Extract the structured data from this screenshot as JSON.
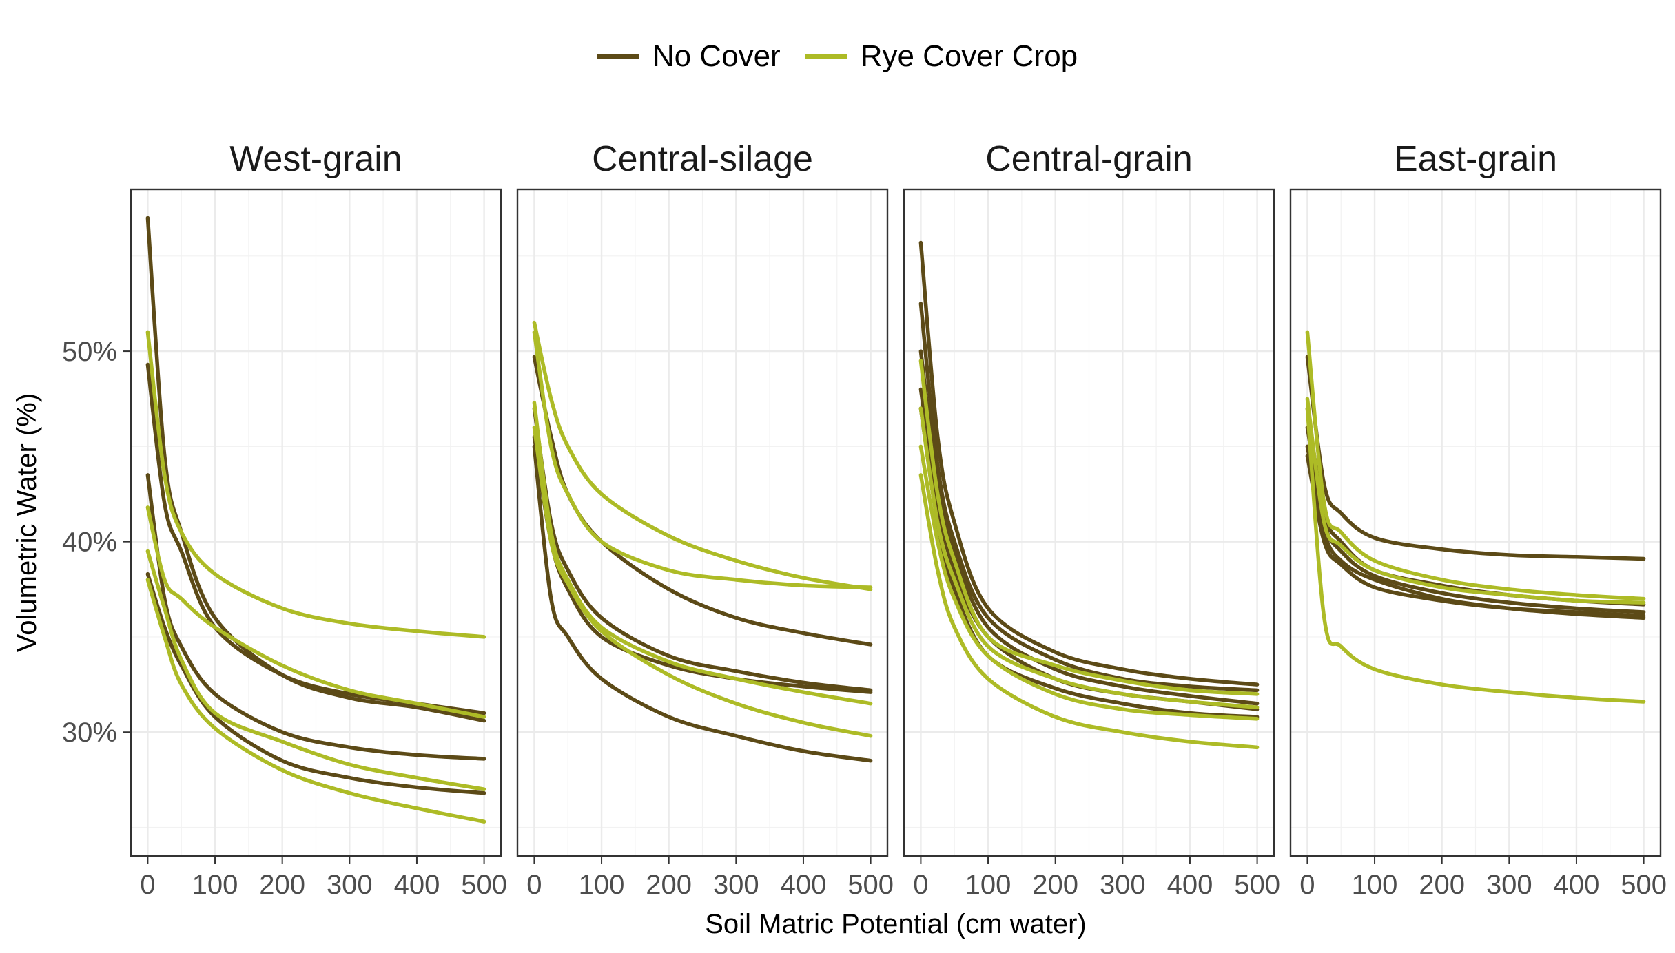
{
  "chart_data": {
    "type": "line",
    "xlabel": "Soil Matric Potential (cm water)",
    "ylabel": "Volumetric Water (%)",
    "xlim": [
      -25,
      525
    ],
    "ylim": [
      23.5,
      58.5
    ],
    "x_ticks": [
      0,
      100,
      200,
      300,
      400,
      500
    ],
    "y_ticks": [
      30,
      40,
      50
    ],
    "y_tick_labels": [
      "30%",
      "40%",
      "50%"
    ],
    "grid": true,
    "legend_position": "top",
    "colors": {
      "No Cover": "#5c4a17",
      "Rye Cover Crop": "#adbb26"
    },
    "legend": [
      {
        "name": "No Cover",
        "color": "#5c4a17"
      },
      {
        "name": "Rye Cover Crop",
        "color": "#adbb26"
      }
    ],
    "panels": [
      {
        "title": "West-grain",
        "series": [
          {
            "group": "No Cover",
            "x": [
              0,
              25,
              50,
              100,
              200,
              300,
              400,
              500
            ],
            "y": [
              57.0,
              44.5,
              40.5,
              36.0,
              33.0,
              31.8,
              31.3,
              30.6
            ]
          },
          {
            "group": "No Cover",
            "x": [
              0,
              25,
              50,
              100,
              200,
              300,
              400,
              500
            ],
            "y": [
              49.3,
              42.0,
              39.5,
              35.5,
              33.0,
              32.0,
              31.5,
              31.0
            ]
          },
          {
            "group": "No Cover",
            "x": [
              0,
              25,
              50,
              100,
              200,
              300,
              400,
              500
            ],
            "y": [
              43.5,
              37.0,
              34.5,
              32.0,
              30.0,
              29.2,
              28.8,
              28.6
            ]
          },
          {
            "group": "No Cover",
            "x": [
              0,
              25,
              50,
              100,
              200,
              300,
              400,
              500
            ],
            "y": [
              38.3,
              35.5,
              33.5,
              30.8,
              28.5,
              27.6,
              27.1,
              26.8
            ]
          },
          {
            "group": "Rye Cover Crop",
            "x": [
              0,
              25,
              50,
              100,
              200,
              300,
              400,
              500
            ],
            "y": [
              51.0,
              43.5,
              40.5,
              38.3,
              36.5,
              35.7,
              35.3,
              35.0
            ]
          },
          {
            "group": "Rye Cover Crop",
            "x": [
              0,
              25,
              50,
              100,
              200,
              300,
              400,
              500
            ],
            "y": [
              41.8,
              38.0,
              37.0,
              35.5,
              33.5,
              32.2,
              31.5,
              30.8
            ]
          },
          {
            "group": "Rye Cover Crop",
            "x": [
              0,
              25,
              50,
              100,
              200,
              300,
              400,
              500
            ],
            "y": [
              39.5,
              36.5,
              33.8,
              31.0,
              29.5,
              28.3,
              27.6,
              27.0
            ]
          },
          {
            "group": "Rye Cover Crop",
            "x": [
              0,
              25,
              50,
              100,
              200,
              300,
              400,
              500
            ],
            "y": [
              38.0,
              35.0,
              32.5,
              30.2,
              28.0,
              26.8,
              26.0,
              25.3
            ]
          }
        ]
      },
      {
        "title": "Central-silage",
        "series": [
          {
            "group": "No Cover",
            "x": [
              0,
              25,
              50,
              100,
              200,
              300,
              400,
              500
            ],
            "y": [
              49.7,
              45.5,
              42.5,
              40.0,
              37.5,
              36.0,
              35.2,
              34.6
            ]
          },
          {
            "group": "No Cover",
            "x": [
              0,
              25,
              50,
              100,
              200,
              300,
              400,
              500
            ],
            "y": [
              47.0,
              41.0,
              38.5,
              36.0,
              34.0,
              33.2,
              32.6,
              32.2
            ]
          },
          {
            "group": "No Cover",
            "x": [
              0,
              25,
              50,
              100,
              200,
              300,
              400,
              500
            ],
            "y": [
              45.5,
              40.0,
              37.5,
              35.0,
              33.5,
              32.8,
              32.4,
              32.1
            ]
          },
          {
            "group": "No Cover",
            "x": [
              0,
              25,
              50,
              100,
              200,
              300,
              400,
              500
            ],
            "y": [
              45.0,
              37.0,
              35.0,
              32.8,
              30.8,
              29.8,
              29.0,
              28.5
            ]
          },
          {
            "group": "Rye Cover Crop",
            "x": [
              0,
              25,
              50,
              100,
              200,
              300,
              400,
              500
            ],
            "y": [
              51.5,
              47.5,
              45.0,
              42.5,
              40.3,
              39.0,
              38.1,
              37.5
            ]
          },
          {
            "group": "Rye Cover Crop",
            "x": [
              0,
              25,
              50,
              100,
              200,
              300,
              400,
              500
            ],
            "y": [
              51.0,
              45.0,
              42.5,
              40.0,
              38.5,
              38.0,
              37.7,
              37.6
            ]
          },
          {
            "group": "Rye Cover Crop",
            "x": [
              0,
              25,
              50,
              100,
              200,
              300,
              400,
              500
            ],
            "y": [
              47.3,
              40.5,
              38.0,
              35.5,
              33.7,
              32.8,
              32.1,
              31.5
            ]
          },
          {
            "group": "Rye Cover Crop",
            "x": [
              0,
              25,
              50,
              100,
              200,
              300,
              400,
              500
            ],
            "y": [
              46.0,
              40.0,
              37.8,
              35.3,
              33.0,
              31.5,
              30.5,
              29.8
            ]
          }
        ]
      },
      {
        "title": "Central-grain",
        "series": [
          {
            "group": "No Cover",
            "x": [
              0,
              25,
              50,
              100,
              200,
              300,
              400,
              500
            ],
            "y": [
              55.7,
              45.5,
              41.0,
              36.5,
              34.2,
              33.3,
              32.8,
              32.5
            ]
          },
          {
            "group": "No Cover",
            "x": [
              0,
              25,
              50,
              100,
              200,
              300,
              400,
              500
            ],
            "y": [
              52.5,
              44.0,
              40.0,
              36.0,
              33.8,
              32.8,
              32.4,
              32.2
            ]
          },
          {
            "group": "No Cover",
            "x": [
              0,
              25,
              50,
              100,
              200,
              300,
              400,
              500
            ],
            "y": [
              50.0,
              43.0,
              39.5,
              35.5,
              33.3,
              32.4,
              31.9,
              31.5
            ]
          },
          {
            "group": "No Cover",
            "x": [
              0,
              25,
              50,
              100,
              200,
              300,
              400,
              500
            ],
            "y": [
              48.0,
              42.0,
              38.5,
              35.0,
              32.8,
              32.0,
              31.6,
              31.2
            ]
          },
          {
            "group": "No Cover",
            "x": [
              0,
              25,
              50,
              100,
              200,
              300,
              400,
              500
            ],
            "y": [
              47.0,
              41.0,
              37.5,
              34.0,
              32.3,
              31.5,
              31.0,
              30.8
            ]
          },
          {
            "group": "Rye Cover Crop",
            "x": [
              0,
              25,
              50,
              100,
              200,
              300,
              400,
              500
            ],
            "y": [
              49.5,
              42.5,
              39.0,
              35.0,
              33.5,
              32.7,
              32.2,
              32.0
            ]
          },
          {
            "group": "Rye Cover Crop",
            "x": [
              0,
              25,
              50,
              100,
              200,
              300,
              400,
              500
            ],
            "y": [
              47.0,
              41.0,
              38.0,
              34.5,
              32.8,
              32.0,
              31.6,
              31.3
            ]
          },
          {
            "group": "Rye Cover Crop",
            "x": [
              0,
              25,
              50,
              100,
              200,
              300,
              400,
              500
            ],
            "y": [
              45.0,
              40.0,
              37.0,
              34.0,
              32.0,
              31.2,
              30.9,
              30.7
            ]
          },
          {
            "group": "Rye Cover Crop",
            "x": [
              0,
              25,
              50,
              100,
              200,
              300,
              400,
              500
            ],
            "y": [
              43.5,
              38.5,
              35.5,
              32.8,
              30.8,
              30.0,
              29.5,
              29.2
            ]
          }
        ]
      },
      {
        "title": "East-grain",
        "series": [
          {
            "group": "No Cover",
            "x": [
              0,
              25,
              50,
              100,
              200,
              300,
              400,
              500
            ],
            "y": [
              49.7,
              43.0,
              41.5,
              40.2,
              39.6,
              39.3,
              39.2,
              39.1
            ]
          },
          {
            "group": "No Cover",
            "x": [
              0,
              25,
              50,
              100,
              200,
              300,
              400,
              500
            ],
            "y": [
              47.0,
              41.5,
              40.0,
              38.5,
              37.7,
              37.2,
              36.9,
              36.7
            ]
          },
          {
            "group": "No Cover",
            "x": [
              0,
              25,
              50,
              100,
              200,
              300,
              400,
              500
            ],
            "y": [
              46.0,
              41.0,
              39.5,
              38.2,
              37.3,
              36.8,
              36.5,
              36.3
            ]
          },
          {
            "group": "No Cover",
            "x": [
              0,
              25,
              50,
              100,
              200,
              300,
              400,
              500
            ],
            "y": [
              45.0,
              40.5,
              39.0,
              38.0,
              37.0,
              36.5,
              36.2,
              36.0
            ]
          },
          {
            "group": "No Cover",
            "x": [
              0,
              25,
              50,
              100,
              200,
              300,
              400,
              500
            ],
            "y": [
              44.5,
              40.0,
              38.8,
              37.6,
              36.9,
              36.5,
              36.3,
              36.1
            ]
          },
          {
            "group": "Rye Cover Crop",
            "x": [
              0,
              25,
              50,
              100,
              200,
              300,
              400,
              500
            ],
            "y": [
              51.0,
              42.0,
              40.5,
              39.0,
              38.0,
              37.5,
              37.2,
              37.0
            ]
          },
          {
            "group": "Rye Cover Crop",
            "x": [
              0,
              25,
              50,
              100,
              200,
              300,
              400,
              500
            ],
            "y": [
              47.5,
              41.0,
              39.8,
              38.5,
              37.6,
              37.2,
              36.9,
              36.8
            ]
          },
          {
            "group": "Rye Cover Crop",
            "x": [
              0,
              25,
              50,
              100,
              200,
              300,
              400,
              500
            ],
            "y": [
              47.0,
              36.0,
              34.5,
              33.3,
              32.5,
              32.1,
              31.8,
              31.6
            ]
          }
        ]
      }
    ]
  }
}
